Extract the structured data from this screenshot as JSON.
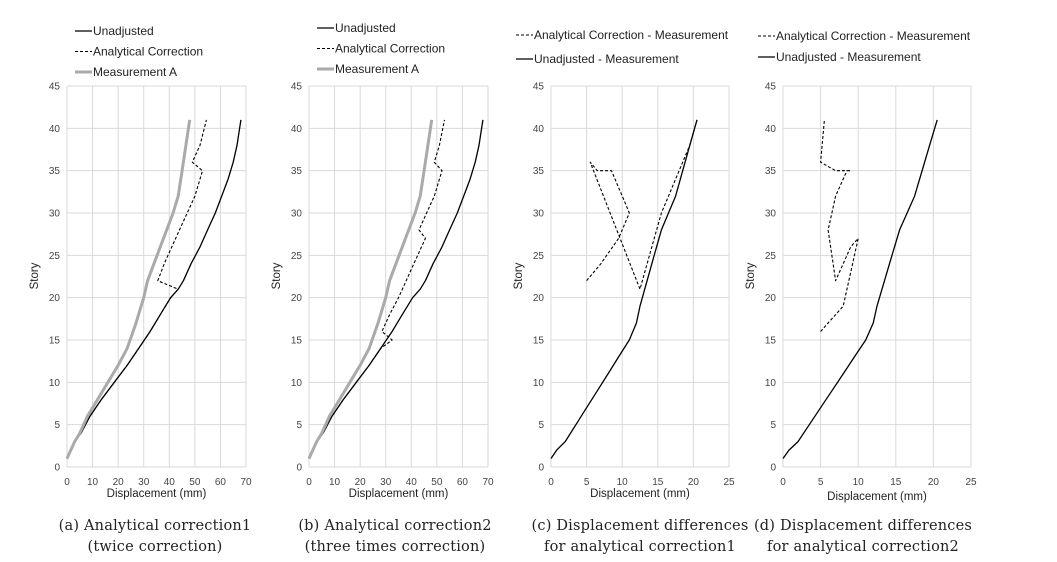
{
  "chart_data": [
    {
      "type": "line",
      "xlabel": "Displacement (mm)",
      "ylabel": "Story",
      "xlim": [
        0,
        70
      ],
      "ylim": [
        0,
        45
      ],
      "xticks": [
        "0",
        "10",
        "20",
        "30",
        "40",
        "50",
        "60",
        "70"
      ],
      "yticks": [
        "0",
        "5",
        "10",
        "15",
        "20",
        "25",
        "30",
        "35",
        "40",
        "45"
      ],
      "grid": true,
      "legend_position": "top-left",
      "caption": [
        "(a) Analytical correction1",
        "(twice correction)"
      ],
      "series": [
        {
          "name": "Unadjusted",
          "style": "solid",
          "color": "#000000",
          "x": [
            0.0,
            1.5,
            3.0,
            5.5,
            9.0,
            13.5,
            18.5,
            23.5,
            28.0,
            32.5,
            36.5,
            40.5,
            43.5,
            45.5,
            48.5,
            52.0,
            55.0,
            58.0,
            60.5,
            63.0,
            65.0,
            66.5,
            68.0
          ],
          "y": [
            1,
            2,
            3,
            4,
            6,
            8,
            10,
            12,
            14,
            16,
            18,
            20,
            21,
            22,
            24,
            26,
            28,
            30,
            32,
            34,
            36,
            38,
            41
          ]
        },
        {
          "name": "Analytical Correction",
          "style": "dashed",
          "color": "#000000",
          "x": [
            0.0,
            1.5,
            3.0,
            5.5,
            9.0,
            13.5,
            18.5,
            23.5,
            28.0,
            32.5,
            36.5,
            40.5,
            43.5,
            35.5,
            38.0,
            41.0,
            44.0,
            47.0,
            50.0,
            53.0,
            49.0,
            52.0,
            54.5
          ],
          "y": [
            1,
            2,
            3,
            4,
            6,
            8,
            10,
            12,
            14,
            16,
            18,
            20,
            21,
            22,
            24,
            26,
            28,
            30,
            32,
            35,
            36,
            38,
            41
          ]
        },
        {
          "name": "Measurement A",
          "style": "solid-gray",
          "color": "#aaaaaa",
          "x": [
            0.0,
            1.5,
            3.0,
            5.0,
            8.0,
            12.0,
            16.0,
            20.0,
            23.5,
            27.0,
            30.0,
            31.5,
            34.0,
            36.5,
            39.0,
            41.5,
            43.5,
            45.0,
            46.5,
            48.0
          ],
          "y": [
            1,
            2,
            3,
            4,
            6,
            8,
            10,
            12,
            14,
            17,
            20,
            22,
            24,
            26,
            28,
            30,
            32,
            35,
            38,
            41
          ]
        }
      ]
    },
    {
      "type": "line",
      "xlabel": "Displacement (mm)",
      "ylabel": "Story",
      "xlim": [
        0,
        70
      ],
      "ylim": [
        0,
        45
      ],
      "xticks": [
        "0",
        "10",
        "20",
        "30",
        "40",
        "50",
        "60",
        "70"
      ],
      "yticks": [
        "0",
        "5",
        "10",
        "15",
        "20",
        "25",
        "30",
        "35",
        "40",
        "45"
      ],
      "grid": true,
      "legend_position": "top-left",
      "caption": [
        "(b) Analytical correction2",
        "(three times correction)"
      ],
      "series": [
        {
          "name": "Unadjusted",
          "style": "solid",
          "color": "#000000",
          "x": [
            0.0,
            1.5,
            3.0,
            5.5,
            9.0,
            13.5,
            18.5,
            23.5,
            28.0,
            32.5,
            36.5,
            40.5,
            43.5,
            45.5,
            48.5,
            52.0,
            55.0,
            58.0,
            60.5,
            63.0,
            65.0,
            66.5,
            68.0
          ],
          "y": [
            1,
            2,
            3,
            4,
            6,
            8,
            10,
            12,
            14,
            16,
            18,
            20,
            21,
            22,
            24,
            26,
            28,
            30,
            32,
            34,
            36,
            38,
            41
          ]
        },
        {
          "name": "Analytical Correction",
          "style": "dashed",
          "color": "#000000",
          "x": [
            0.0,
            1.5,
            3.0,
            5.5,
            9.0,
            13.5,
            18.5,
            23.5,
            28.0,
            32.5,
            28.5,
            31.5,
            35.0,
            38.0,
            41.0,
            44.0,
            45.5,
            43.0,
            46.0,
            49.0,
            52.0,
            49.0,
            51.0,
            53.0
          ],
          "y": [
            1,
            2,
            3,
            4,
            6,
            8,
            10,
            12,
            14,
            15,
            16,
            18,
            20,
            22,
            24,
            26,
            27,
            28,
            30,
            32,
            35,
            36,
            38,
            41
          ]
        },
        {
          "name": "Measurement A",
          "style": "solid-gray",
          "color": "#aaaaaa",
          "x": [
            0.0,
            1.5,
            3.0,
            5.0,
            8.0,
            12.0,
            16.0,
            20.0,
            23.5,
            27.0,
            30.0,
            31.5,
            34.0,
            36.5,
            39.0,
            41.5,
            43.5,
            45.0,
            46.5,
            48.0
          ],
          "y": [
            1,
            2,
            3,
            4,
            6,
            8,
            10,
            12,
            14,
            17,
            20,
            22,
            24,
            26,
            28,
            30,
            32,
            35,
            38,
            41
          ]
        }
      ]
    },
    {
      "type": "line",
      "xlabel": "Displacement (mm)",
      "ylabel": "Story",
      "xlim": [
        0,
        25
      ],
      "ylim": [
        0,
        45
      ],
      "xticks": [
        "0",
        "5",
        "10",
        "15",
        "20",
        "25"
      ],
      "yticks": [
        "0",
        "5",
        "10",
        "15",
        "20",
        "25",
        "30",
        "35",
        "40",
        "45"
      ],
      "grid": true,
      "legend_position": "top-left",
      "caption": [
        "(c) Displacement differences",
        "for analytical correction1"
      ],
      "series": [
        {
          "name": "Analytical Correction - Measurement",
          "style": "dashed",
          "color": "#000000",
          "x": [
            5.0,
            7.0,
            9.5,
            11.0,
            10.5,
            9.5,
            8.5,
            7.5,
            6.5,
            5.5,
            12.5,
            13.5,
            14.5,
            15.5,
            16.5,
            17.5,
            18.5,
            19.5,
            20.5
          ],
          "y": [
            22,
            24,
            27,
            30,
            31,
            33,
            35,
            35,
            35,
            36,
            21,
            24,
            27,
            30,
            32,
            34,
            36,
            38,
            41
          ]
        },
        {
          "name": "Unadjusted - Measurement",
          "style": "solid",
          "color": "#000000",
          "x": [
            0.0,
            0.8,
            2.0,
            3.5,
            5.0,
            6.5,
            8.0,
            9.5,
            11.0,
            12.0,
            12.5,
            13.5,
            14.5,
            15.5,
            16.5,
            17.5,
            18.5,
            19.5,
            20.5
          ],
          "y": [
            1,
            2,
            3,
            5,
            7,
            9,
            11,
            13,
            15,
            17,
            19,
            22,
            25,
            28,
            30,
            32,
            35,
            38,
            41
          ]
        }
      ]
    },
    {
      "type": "line",
      "xlabel": "Displacement (mm)",
      "ylabel": "Story",
      "xlim": [
        0,
        25
      ],
      "ylim": [
        0,
        45
      ],
      "xticks": [
        "0",
        "5",
        "10",
        "15",
        "20",
        "25"
      ],
      "yticks": [
        "0",
        "5",
        "10",
        "15",
        "20",
        "25",
        "30",
        "35",
        "40",
        "45"
      ],
      "grid": true,
      "legend_position": "top-left",
      "caption": [
        "(d) Displacement differences",
        "for analytical correction2"
      ],
      "series": [
        {
          "name": "Analytical Correction - Measurement",
          "style": "dashed",
          "color": "#000000",
          "x": [
            5.0,
            8.0,
            10.0,
            9.0,
            8.0,
            7.0,
            6.0,
            6.5,
            7.0,
            8.5,
            9.0,
            8.0,
            7.0,
            5.0,
            5.5
          ],
          "y": [
            16,
            19,
            27,
            26,
            24,
            22,
            28,
            30,
            32,
            35,
            35,
            35,
            35,
            36,
            41
          ]
        },
        {
          "name": "Unadjusted - Measurement",
          "style": "solid",
          "color": "#000000",
          "x": [
            0.0,
            0.8,
            2.0,
            3.5,
            5.0,
            6.5,
            8.0,
            9.5,
            11.0,
            12.0,
            12.5,
            13.5,
            14.5,
            15.5,
            16.5,
            17.5,
            18.5,
            19.5,
            20.5
          ],
          "y": [
            1,
            2,
            3,
            5,
            7,
            9,
            11,
            13,
            15,
            17,
            19,
            22,
            25,
            28,
            30,
            32,
            35,
            38,
            41
          ]
        }
      ]
    }
  ]
}
